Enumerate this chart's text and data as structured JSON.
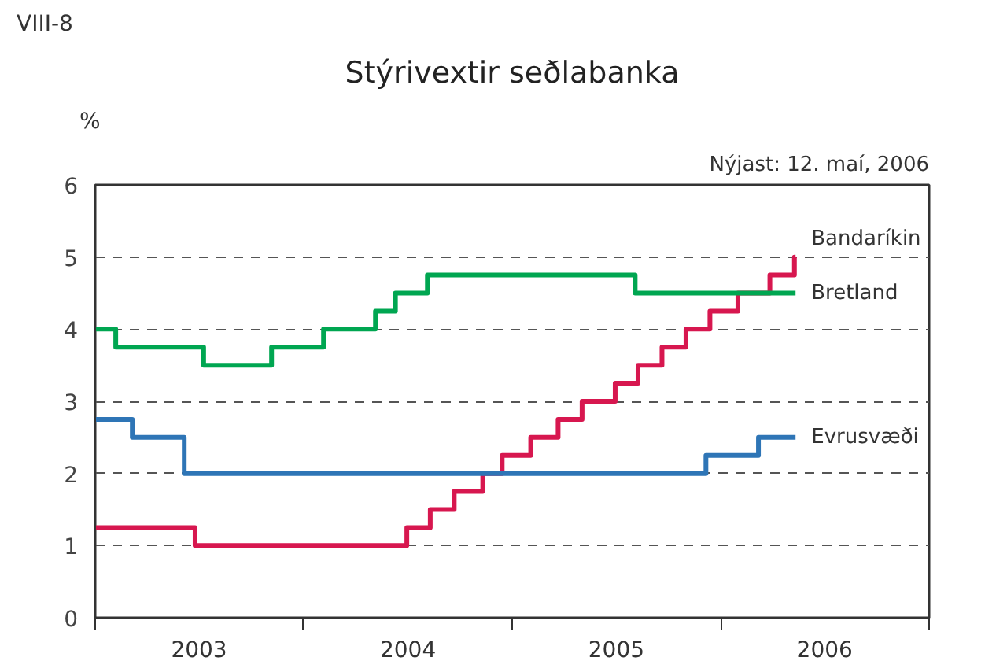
{
  "chart_data": {
    "type": "step",
    "title": "Stýrivextir seðlabanka",
    "subtitle": "Nýjast: 12. maí, 2006",
    "ylabel": "%",
    "annotations": [
      "VIII-8"
    ],
    "xlim": [
      "2003-01-01",
      "2007-01-01"
    ],
    "xticks": [
      {
        "value": "2003-01-01",
        "label": null
      },
      {
        "value": "2003-07-02",
        "label": "2003"
      },
      {
        "value": "2004-01-01",
        "label": null
      },
      {
        "value": "2004-07-02",
        "label": "2004"
      },
      {
        "value": "2005-01-01",
        "label": null
      },
      {
        "value": "2005-07-02",
        "label": "2005"
      },
      {
        "value": "2006-01-01",
        "label": null
      },
      {
        "value": "2006-07-02",
        "label": "2006"
      },
      {
        "value": "2007-01-01",
        "label": null
      }
    ],
    "ylim": [
      0,
      6
    ],
    "yticks": [
      0,
      1,
      2,
      3,
      4,
      5,
      6
    ],
    "grid": "y",
    "line_style": "solid",
    "legend": false,
    "series": [
      {
        "name": "Bandaríkin",
        "color": "#d7174f",
        "x": [
          "2003-01-01",
          "2003-06-25",
          "2004-06-30",
          "2004-08-10",
          "2004-09-21",
          "2004-11-10",
          "2004-12-14",
          "2005-02-02",
          "2005-03-22",
          "2005-05-03",
          "2005-06-30",
          "2005-08-09",
          "2005-09-20",
          "2005-11-01",
          "2005-12-13",
          "2006-01-31",
          "2006-03-28",
          "2006-05-10",
          "2006-05-12"
        ],
        "values": [
          1.25,
          1.0,
          1.25,
          1.5,
          1.75,
          2.0,
          2.25,
          2.5,
          2.75,
          3.0,
          3.25,
          3.5,
          3.75,
          4.0,
          4.25,
          4.5,
          4.75,
          5.0,
          5.0
        ]
      },
      {
        "name": "Bretland",
        "color": "#00a651",
        "x": [
          "2003-01-01",
          "2003-02-06",
          "2003-07-10",
          "2003-11-06",
          "2004-02-05",
          "2004-05-06",
          "2004-06-10",
          "2004-08-05",
          "2005-08-04",
          "2006-05-12"
        ],
        "values": [
          4.0,
          3.75,
          3.5,
          3.75,
          4.0,
          4.25,
          4.5,
          4.75,
          4.5,
          4.5
        ]
      },
      {
        "name": "Evrusvæði",
        "color": "#2e75b6",
        "x": [
          "2003-01-01",
          "2003-03-07",
          "2003-06-06",
          "2005-12-06",
          "2006-03-08",
          "2006-05-12"
        ],
        "values": [
          2.75,
          2.5,
          2.0,
          2.25,
          2.5,
          2.5
        ]
      }
    ]
  }
}
